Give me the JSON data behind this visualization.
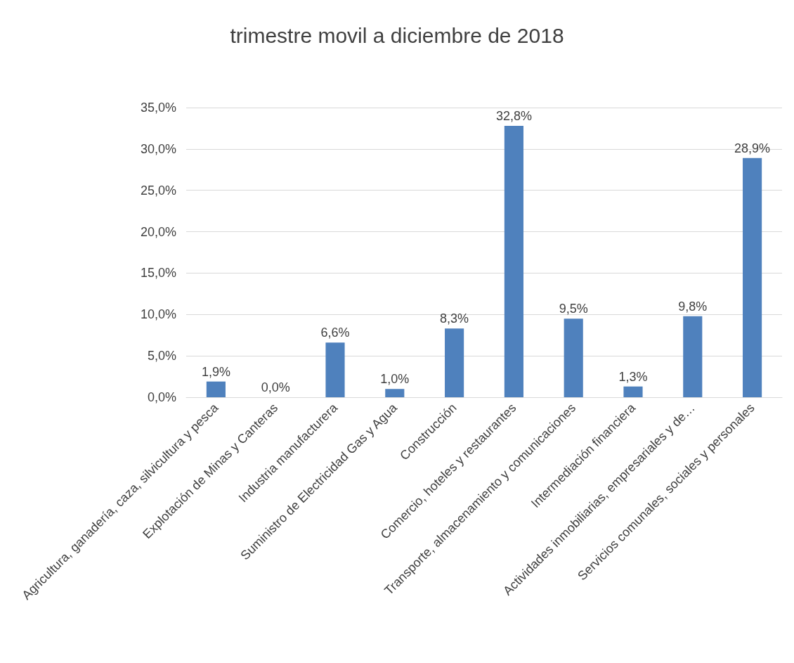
{
  "chart_data": {
    "type": "bar",
    "title": "trimestre movil a diciembre de 2018",
    "categories": [
      "Agricultura, ganadería, caza, silvicultura y pesca",
      "Explotación de Minas y Canteras",
      "Industria manufacturera",
      "Suministro de Electricidad Gas y Agua",
      "Construcción",
      "Comercio, hoteles y restaurantes",
      "Transporte, almacenamiento y comunicaciones",
      "Intermediación financiera",
      "Actividades inmobiliarias, empresariales y de…",
      "Servicios comunales, sociales y personales"
    ],
    "values": [
      1.9,
      0.0,
      6.6,
      1.0,
      8.3,
      32.8,
      9.5,
      1.3,
      9.8,
      28.9
    ],
    "value_labels": [
      "1,9%",
      "0,0%",
      "6,6%",
      "1,0%",
      "8,3%",
      "32,8%",
      "9,5%",
      "1,3%",
      "9,8%",
      "28,9%"
    ],
    "color": "#4f81bd",
    "ylim": [
      0,
      35
    ],
    "yticks": [
      {
        "value": 0,
        "label": "0,0%"
      },
      {
        "value": 5,
        "label": "5,0%"
      },
      {
        "value": 10,
        "label": "10,0%"
      },
      {
        "value": 15,
        "label": "15,0%"
      },
      {
        "value": 20,
        "label": "20,0%"
      },
      {
        "value": 25,
        "label": "25,0%"
      },
      {
        "value": 30,
        "label": "30,0%"
      },
      {
        "value": 35,
        "label": "35,0%"
      }
    ],
    "grid": "y"
  }
}
